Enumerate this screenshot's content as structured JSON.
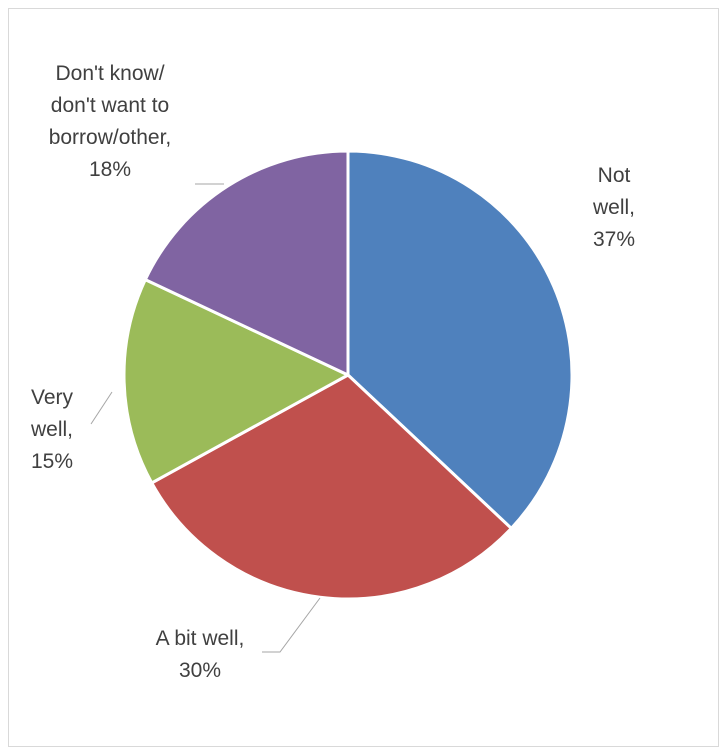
{
  "chart_data": {
    "type": "pie",
    "title": "",
    "slices": [
      {
        "label_lines": [
          "Not",
          "well,",
          "37%"
        ],
        "category": "Not well",
        "value": 37,
        "color": "#4f81bd"
      },
      {
        "label_lines": [
          "A bit well,",
          "30%"
        ],
        "category": "A bit well",
        "value": 30,
        "color": "#c0504d"
      },
      {
        "label_lines": [
          "Very",
          "well,",
          "15%"
        ],
        "category": "Very well",
        "value": 15,
        "color": "#9bbb59"
      },
      {
        "label_lines": [
          "Don't know/",
          "don't want to",
          "borrow/other,",
          "18%"
        ],
        "category": "Don't know/ don't want to borrow/other",
        "value": 18,
        "color": "#8064a2"
      }
    ],
    "start_angle_deg": 0,
    "direction": "clockwise",
    "legend": "none",
    "slice_border_color": "#ffffff",
    "leader_line_color": "#a6a6a6",
    "label_color": "#404040"
  }
}
